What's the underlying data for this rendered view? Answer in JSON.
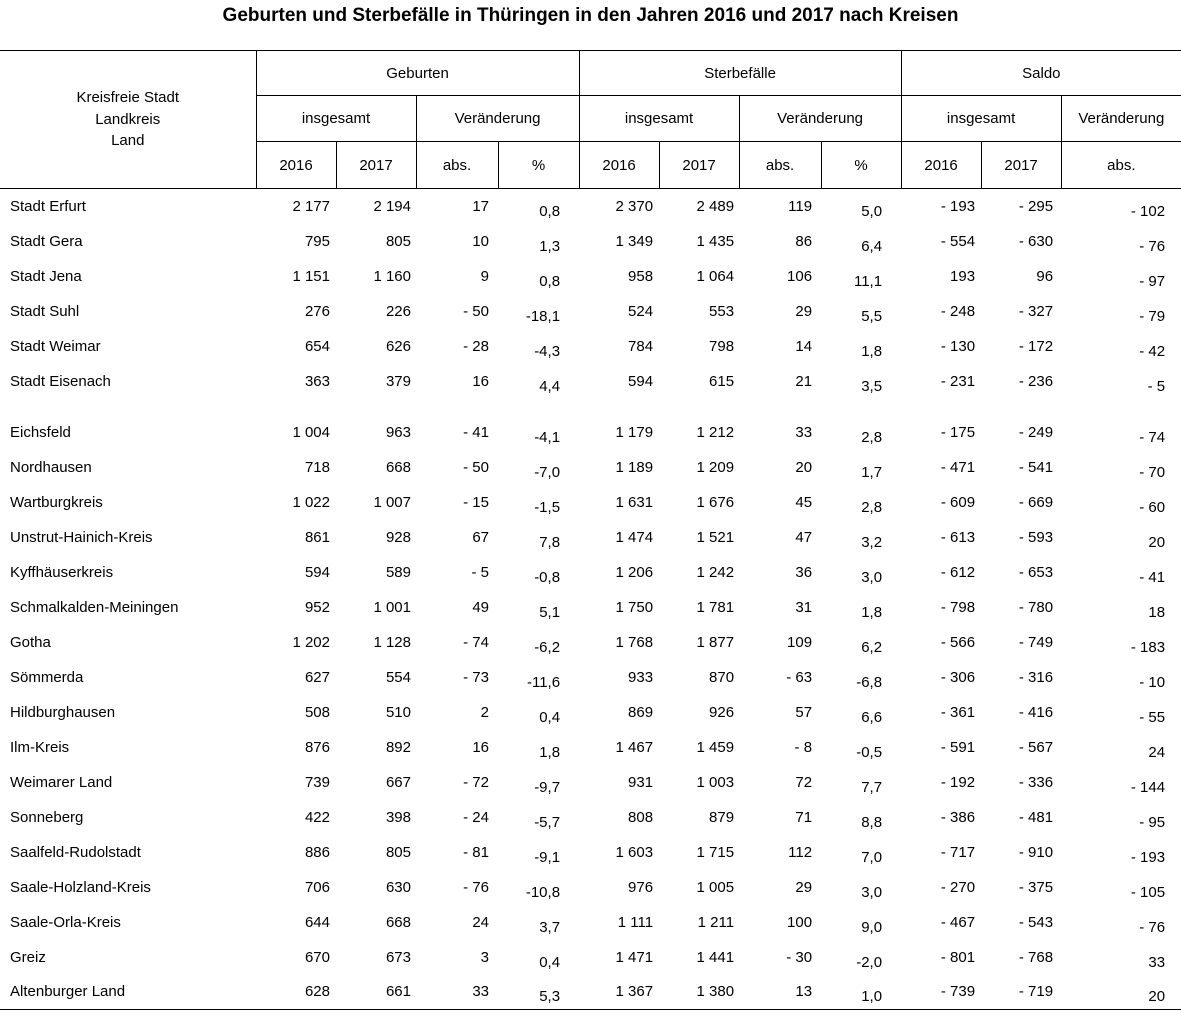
{
  "title": "Geburten und Sterbefälle in Thüringen in den Jahren 2016 und 2017 nach Kreisen",
  "table": {
    "row_header": {
      "lines": [
        "Kreisfreie Stadt",
        "Landkreis",
        "Land"
      ]
    },
    "groups": [
      {
        "label": "Geburten"
      },
      {
        "label": "Sterbefälle"
      },
      {
        "label": "Saldo"
      }
    ],
    "subheaders": {
      "insgesamt": "insgesamt",
      "veraenderung": "Veränderung",
      "y2016": "2016",
      "y2017": "2017",
      "abs": "abs.",
      "pct": "%"
    },
    "rows": [
      {
        "name": "Stadt Erfurt",
        "values": [
          "2 177",
          "2 194",
          "17",
          "0,8",
          "2 370",
          "2 489",
          "119",
          "5,0",
          "- 193",
          "- 295",
          "- 102"
        ]
      },
      {
        "name": "Stadt Gera",
        "values": [
          "795",
          "805",
          "10",
          "1,3",
          "1 349",
          "1 435",
          "86",
          "6,4",
          "- 554",
          "- 630",
          "- 76"
        ]
      },
      {
        "name": "Stadt Jena",
        "values": [
          "1 151",
          "1 160",
          "9",
          "0,8",
          "958",
          "1 064",
          "106",
          "11,1",
          "193",
          "96",
          "- 97"
        ]
      },
      {
        "name": "Stadt Suhl",
        "values": [
          "276",
          "226",
          "- 50",
          "-18,1",
          "524",
          "553",
          "29",
          "5,5",
          "- 248",
          "- 327",
          "- 79"
        ]
      },
      {
        "name": "Stadt Weimar",
        "values": [
          "654",
          "626",
          "- 28",
          "-4,3",
          "784",
          "798",
          "14",
          "1,8",
          "- 130",
          "- 172",
          "- 42"
        ]
      },
      {
        "name": "Stadt Eisenach",
        "values": [
          "363",
          "379",
          "16",
          "4,4",
          "594",
          "615",
          "21",
          "3,5",
          "- 231",
          "- 236",
          "- 5"
        ]
      },
      {
        "name": "Eichsfeld",
        "gap_before": true,
        "values": [
          "1 004",
          "963",
          "- 41",
          "-4,1",
          "1 179",
          "1 212",
          "33",
          "2,8",
          "- 175",
          "- 249",
          "- 74"
        ]
      },
      {
        "name": "Nordhausen",
        "values": [
          "718",
          "668",
          "- 50",
          "-7,0",
          "1 189",
          "1 209",
          "20",
          "1,7",
          "- 471",
          "- 541",
          "- 70"
        ]
      },
      {
        "name": "Wartburgkreis",
        "values": [
          "1 022",
          "1 007",
          "- 15",
          "-1,5",
          "1 631",
          "1 676",
          "45",
          "2,8",
          "- 609",
          "- 669",
          "- 60"
        ]
      },
      {
        "name": "Unstrut-Hainich-Kreis",
        "values": [
          "861",
          "928",
          "67",
          "7,8",
          "1 474",
          "1 521",
          "47",
          "3,2",
          "- 613",
          "- 593",
          "20"
        ]
      },
      {
        "name": "Kyffhäuserkreis",
        "values": [
          "594",
          "589",
          "- 5",
          "-0,8",
          "1 206",
          "1 242",
          "36",
          "3,0",
          "- 612",
          "- 653",
          "- 41"
        ]
      },
      {
        "name": "Schmalkalden-Meiningen",
        "values": [
          "952",
          "1 001",
          "49",
          "5,1",
          "1 750",
          "1 781",
          "31",
          "1,8",
          "- 798",
          "- 780",
          "18"
        ]
      },
      {
        "name": "Gotha",
        "values": [
          "1 202",
          "1 128",
          "- 74",
          "-6,2",
          "1 768",
          "1 877",
          "109",
          "6,2",
          "- 566",
          "- 749",
          "- 183"
        ]
      },
      {
        "name": "Sömmerda",
        "values": [
          "627",
          "554",
          "- 73",
          "-11,6",
          "933",
          "870",
          "- 63",
          "-6,8",
          "- 306",
          "- 316",
          "- 10"
        ]
      },
      {
        "name": "Hildburghausen",
        "values": [
          "508",
          "510",
          "2",
          "0,4",
          "869",
          "926",
          "57",
          "6,6",
          "- 361",
          "- 416",
          "- 55"
        ]
      },
      {
        "name": "Ilm-Kreis",
        "values": [
          "876",
          "892",
          "16",
          "1,8",
          "1 467",
          "1 459",
          "- 8",
          "-0,5",
          "- 591",
          "- 567",
          "24"
        ]
      },
      {
        "name": "Weimarer Land",
        "values": [
          "739",
          "667",
          "- 72",
          "-9,7",
          "931",
          "1 003",
          "72",
          "7,7",
          "- 192",
          "- 336",
          "- 144"
        ]
      },
      {
        "name": "Sonneberg",
        "values": [
          "422",
          "398",
          "- 24",
          "-5,7",
          "808",
          "879",
          "71",
          "8,8",
          "- 386",
          "- 481",
          "- 95"
        ]
      },
      {
        "name": "Saalfeld-Rudolstadt",
        "values": [
          "886",
          "805",
          "- 81",
          "-9,1",
          "1 603",
          "1 715",
          "112",
          "7,0",
          "- 717",
          "- 910",
          "- 193"
        ]
      },
      {
        "name": "Saale-Holzland-Kreis",
        "values": [
          "706",
          "630",
          "- 76",
          "-10,8",
          "976",
          "1 005",
          "29",
          "3,0",
          "- 270",
          "- 375",
          "- 105"
        ]
      },
      {
        "name": "Saale-Orla-Kreis",
        "values": [
          "644",
          "668",
          "24",
          "3,7",
          "1 111",
          "1 211",
          "100",
          "9,0",
          "- 467",
          "- 543",
          "- 76"
        ]
      },
      {
        "name": "Greiz",
        "values": [
          "670",
          "673",
          "3",
          "0,4",
          "1 471",
          "1 441",
          "- 30",
          "-2,0",
          "- 801",
          "- 768",
          "33"
        ]
      },
      {
        "name": "Altenburger Land",
        "values": [
          "628",
          "661",
          "33",
          "5,3",
          "1 367",
          "1 380",
          "13",
          "1,0",
          "- 739",
          "- 719",
          "20"
        ]
      }
    ]
  }
}
